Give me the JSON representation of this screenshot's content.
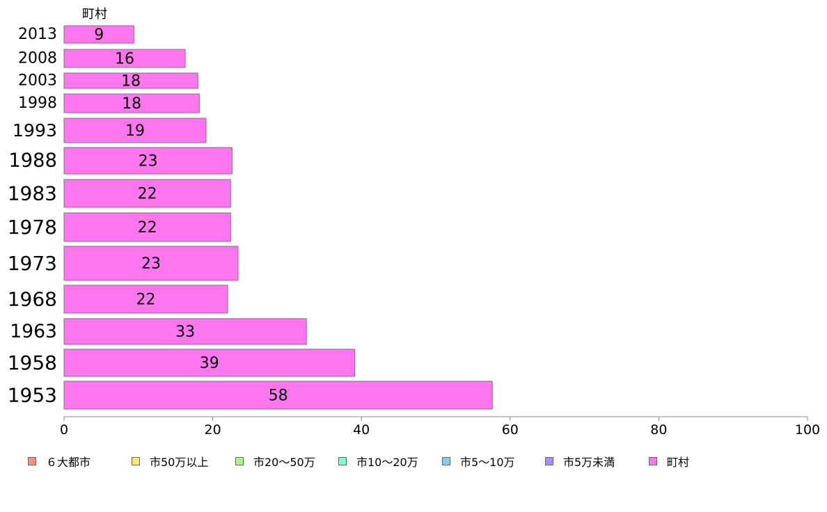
{
  "chart_data": {
    "type": "bar",
    "orientation": "horizontal",
    "series_label": "町村",
    "categories": [
      "2013",
      "2008",
      "2003",
      "1998",
      "1993",
      "1988",
      "1983",
      "1978",
      "1973",
      "1968",
      "1963",
      "1958",
      "1953"
    ],
    "values": [
      9.4,
      16.3,
      18.0,
      18.2,
      19.1,
      22.6,
      22.4,
      22.4,
      23.4,
      22.0,
      32.6,
      39.1,
      57.6
    ],
    "data_labels": [
      "9",
      "16",
      "18",
      "18",
      "19",
      "23",
      "22",
      "22",
      "23",
      "22",
      "33",
      "39",
      "58"
    ],
    "xlim": [
      0,
      100
    ],
    "x_ticks": [
      "0",
      "20",
      "40",
      "60",
      "80",
      "100"
    ],
    "bar_color": "#ff77ee",
    "grid": false,
    "legend_position": "bottom",
    "legend": [
      {
        "label": "６大都市",
        "color": "#ff8f80"
      },
      {
        "label": "市50万以上",
        "color": "#ffe680"
      },
      {
        "label": "市20～50万",
        "color": "#a8ff80"
      },
      {
        "label": "市10～20万",
        "color": "#80ffcc"
      },
      {
        "label": "市5～10万",
        "color": "#80ccff"
      },
      {
        "label": "市5万未満",
        "color": "#a98fff"
      },
      {
        "label": "町村",
        "color": "#ff77ee"
      }
    ]
  }
}
